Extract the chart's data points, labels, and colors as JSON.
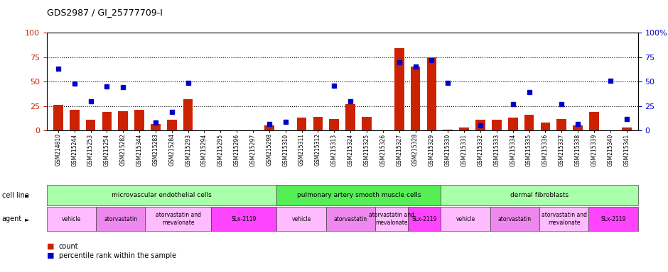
{
  "title": "GDS2987 / GI_25777709-I",
  "samples": [
    "GSM214810",
    "GSM215244",
    "GSM215253",
    "GSM215254",
    "GSM215282",
    "GSM215344",
    "GSM215283",
    "GSM215284",
    "GSM215293",
    "GSM215294",
    "GSM215295",
    "GSM215296",
    "GSM215297",
    "GSM215298",
    "GSM215310",
    "GSM215311",
    "GSM215312",
    "GSM215313",
    "GSM215324",
    "GSM215325",
    "GSM215326",
    "GSM215327",
    "GSM215328",
    "GSM215329",
    "GSM215330",
    "GSM215331",
    "GSM215332",
    "GSM215333",
    "GSM215334",
    "GSM215335",
    "GSM215336",
    "GSM215337",
    "GSM215338",
    "GSM215339",
    "GSM215340",
    "GSM215341"
  ],
  "counts": [
    26,
    21,
    11,
    19,
    20,
    21,
    7,
    11,
    32,
    0,
    0,
    0,
    0,
    5,
    0,
    13,
    14,
    12,
    27,
    14,
    0,
    84,
    65,
    75,
    1,
    3,
    11,
    11,
    13,
    16,
    8,
    12,
    5,
    19,
    0,
    3
  ],
  "percentiles": [
    63,
    48,
    30,
    45,
    44,
    0,
    8,
    19,
    49,
    0,
    0,
    0,
    0,
    7,
    9,
    0,
    0,
    46,
    30,
    0,
    0,
    70,
    65,
    72,
    49,
    0,
    5,
    0,
    27,
    39,
    0,
    27,
    7,
    0,
    51,
    12
  ],
  "cell_line_groups": [
    {
      "label": "microvascular endothelial cells",
      "start": 0,
      "end": 14,
      "color": "#aaffaa"
    },
    {
      "label": "pulmonary artery smooth muscle cells",
      "start": 14,
      "end": 24,
      "color": "#55ee55"
    },
    {
      "label": "dermal fibroblasts",
      "start": 24,
      "end": 36,
      "color": "#aaffaa"
    }
  ],
  "agent_groups": [
    {
      "label": "vehicle",
      "start": 0,
      "end": 3,
      "color": "#ffbbff"
    },
    {
      "label": "atorvastatin",
      "start": 3,
      "end": 6,
      "color": "#ee88ee"
    },
    {
      "label": "atorvastatin and\nmevalonate",
      "start": 6,
      "end": 10,
      "color": "#ffbbff"
    },
    {
      "label": "SLx-2119",
      "start": 10,
      "end": 14,
      "color": "#ff44ff"
    },
    {
      "label": "vehicle",
      "start": 14,
      "end": 17,
      "color": "#ffbbff"
    },
    {
      "label": "atorvastatin",
      "start": 17,
      "end": 20,
      "color": "#ee88ee"
    },
    {
      "label": "atorvastatin and\nmevalonate",
      "start": 20,
      "end": 22,
      "color": "#ffbbff"
    },
    {
      "label": "SLx-2119",
      "start": 22,
      "end": 24,
      "color": "#ff44ff"
    },
    {
      "label": "vehicle",
      "start": 24,
      "end": 27,
      "color": "#ffbbff"
    },
    {
      "label": "atorvastatin",
      "start": 27,
      "end": 30,
      "color": "#ee88ee"
    },
    {
      "label": "atorvastatin and\nmevalonate",
      "start": 30,
      "end": 33,
      "color": "#ffbbff"
    },
    {
      "label": "SLx-2119",
      "start": 33,
      "end": 36,
      "color": "#ff44ff"
    }
  ],
  "bar_color": "#cc2200",
  "dot_color": "#0000cc",
  "axis_bg": "#ffffff",
  "ylim": [
    0,
    100
  ],
  "yticks_left": [
    0,
    25,
    50,
    75,
    100
  ],
  "yticks_right": [
    0,
    25,
    50,
    75,
    100
  ],
  "ytick_right_labels": [
    "0",
    "25",
    "50",
    "75",
    "100%"
  ],
  "ytick_left_labels": [
    "0",
    "25",
    "50",
    "75",
    "100"
  ],
  "dotted_lines": [
    25,
    50,
    75
  ],
  "cell_line_label": "cell line",
  "agent_label": "agent",
  "legend_count_label": "count",
  "legend_pct_label": "percentile rank within the sample",
  "fig_width": 9.4,
  "fig_height": 3.84,
  "dpi": 100
}
